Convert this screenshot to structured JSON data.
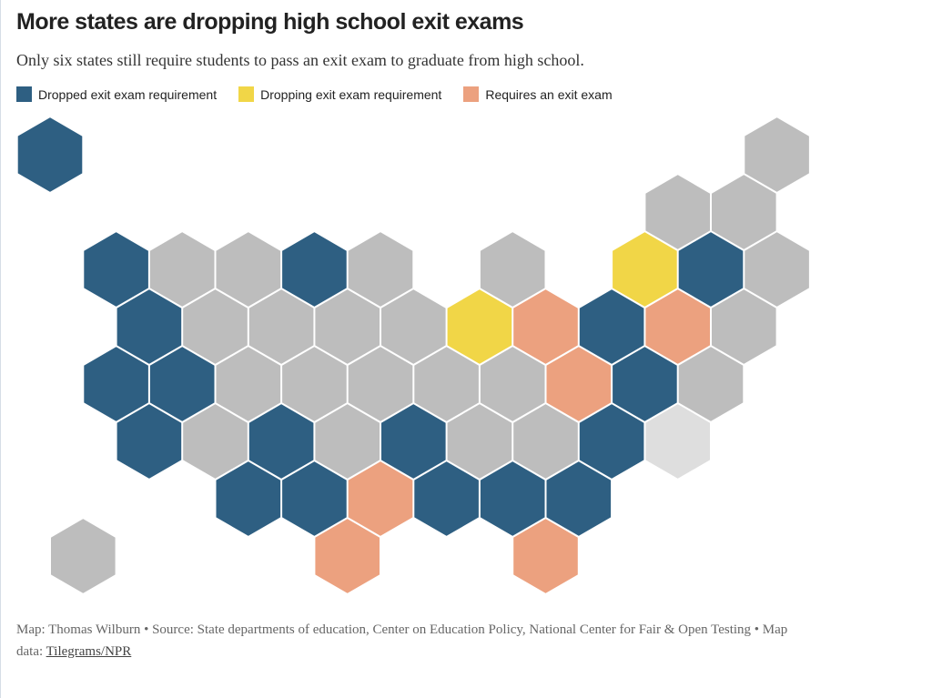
{
  "title": "More states are dropping high school exit exams",
  "subtitle": "Only six states still require students to pass an exit exam to graduate from high school.",
  "legend": [
    {
      "label": "Dropped exit exam requirement",
      "color": "#2e5f82"
    },
    {
      "label": "Dropping exit exam requirement",
      "color": "#f1d647"
    },
    {
      "label": "Requires an exit exam",
      "color": "#eca17f"
    }
  ],
  "colors": {
    "dropped": "#2e5f82",
    "dropping": "#f1d647",
    "requires": "#eca17f",
    "none": "#bdbdbd",
    "light": "#dedede"
  },
  "credit": {
    "text": "Map: Thomas Wilburn • Source: State departments of education, Center on Education Policy, National Center for Fair & Open Testing • Map data: ",
    "link_label": "Tilegrams/NPR"
  },
  "chart_data": {
    "type": "hex-tile-map",
    "title": "More states are dropping high school exit exams",
    "categories": [
      "dropped",
      "dropping",
      "requires",
      "none",
      "light"
    ],
    "tiles": [
      {
        "row": 0,
        "col": 0,
        "status": "dropped"
      },
      {
        "row": 0,
        "col": 11,
        "status": "none"
      },
      {
        "row": 1,
        "col": 9,
        "status": "none"
      },
      {
        "row": 1,
        "col": 10,
        "status": "none"
      },
      {
        "row": 2,
        "col": 1,
        "status": "dropped"
      },
      {
        "row": 2,
        "col": 2,
        "status": "none"
      },
      {
        "row": 2,
        "col": 3,
        "status": "none"
      },
      {
        "row": 2,
        "col": 4,
        "status": "dropped"
      },
      {
        "row": 2,
        "col": 5,
        "status": "none"
      },
      {
        "row": 2,
        "col": 7,
        "status": "none"
      },
      {
        "row": 2,
        "col": 9,
        "status": "dropping"
      },
      {
        "row": 2,
        "col": 10,
        "status": "dropped"
      },
      {
        "row": 2,
        "col": 11,
        "status": "none"
      },
      {
        "row": 3,
        "col": 1,
        "status": "dropped"
      },
      {
        "row": 3,
        "col": 2,
        "status": "none"
      },
      {
        "row": 3,
        "col": 3,
        "status": "none"
      },
      {
        "row": 3,
        "col": 4,
        "status": "none"
      },
      {
        "row": 3,
        "col": 5,
        "status": "none"
      },
      {
        "row": 3,
        "col": 6,
        "status": "dropping"
      },
      {
        "row": 3,
        "col": 7,
        "status": "requires"
      },
      {
        "row": 3,
        "col": 8,
        "status": "dropped"
      },
      {
        "row": 3,
        "col": 9,
        "status": "requires"
      },
      {
        "row": 3,
        "col": 10,
        "status": "none"
      },
      {
        "row": 4,
        "col": 1,
        "status": "dropped"
      },
      {
        "row": 4,
        "col": 2,
        "status": "dropped"
      },
      {
        "row": 4,
        "col": 3,
        "status": "none"
      },
      {
        "row": 4,
        "col": 4,
        "status": "none"
      },
      {
        "row": 4,
        "col": 5,
        "status": "none"
      },
      {
        "row": 4,
        "col": 6,
        "status": "none"
      },
      {
        "row": 4,
        "col": 7,
        "status": "none"
      },
      {
        "row": 4,
        "col": 8,
        "status": "requires"
      },
      {
        "row": 4,
        "col": 9,
        "status": "dropped"
      },
      {
        "row": 4,
        "col": 10,
        "status": "none"
      },
      {
        "row": 5,
        "col": 1,
        "status": "dropped"
      },
      {
        "row": 5,
        "col": 2,
        "status": "none"
      },
      {
        "row": 5,
        "col": 3,
        "status": "dropped"
      },
      {
        "row": 5,
        "col": 4,
        "status": "none"
      },
      {
        "row": 5,
        "col": 5,
        "status": "dropped"
      },
      {
        "row": 5,
        "col": 6,
        "status": "none"
      },
      {
        "row": 5,
        "col": 7,
        "status": "none"
      },
      {
        "row": 5,
        "col": 8,
        "status": "dropped"
      },
      {
        "row": 5,
        "col": 9,
        "status": "light"
      },
      {
        "row": 6,
        "col": 3,
        "status": "dropped"
      },
      {
        "row": 6,
        "col": 4,
        "status": "dropped"
      },
      {
        "row": 6,
        "col": 5,
        "status": "requires"
      },
      {
        "row": 6,
        "col": 6,
        "status": "dropped"
      },
      {
        "row": 6,
        "col": 7,
        "status": "dropped"
      },
      {
        "row": 6,
        "col": 8,
        "status": "dropped"
      },
      {
        "row": 7,
        "col": 0,
        "status": "none"
      },
      {
        "row": 7,
        "col": 4,
        "status": "requires"
      },
      {
        "row": 7,
        "col": 7,
        "status": "requires"
      }
    ]
  }
}
